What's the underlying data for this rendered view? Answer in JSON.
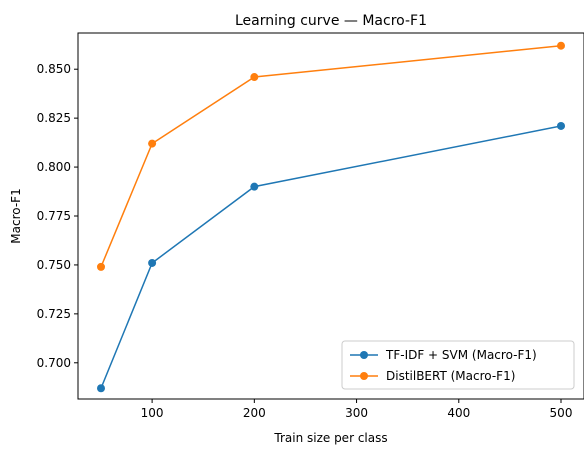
{
  "chart_data": {
    "type": "line",
    "title": "Learning curve — Macro-F1",
    "xlabel": "Train size per class",
    "ylabel": "Macro-F1",
    "xlim": [
      27.5,
      522.5
    ],
    "ylim": [
      0.6815,
      0.8685
    ],
    "x_ticks": [
      100,
      200,
      300,
      400,
      500
    ],
    "y_ticks": [
      0.7,
      0.725,
      0.75,
      0.775,
      0.8,
      0.825,
      0.85
    ],
    "x_tick_labels": [
      "100",
      "200",
      "300",
      "400",
      "500"
    ],
    "y_tick_labels": [
      "0.700",
      "0.725",
      "0.750",
      "0.775",
      "0.800",
      "0.825",
      "0.850"
    ],
    "grid": false,
    "legend_position": "lower-right",
    "series": [
      {
        "name": "TF-IDF + SVM (Macro-F1)",
        "color": "#1f77b4",
        "x": [
          50,
          100,
          200,
          500
        ],
        "y": [
          0.687,
          0.751,
          0.79,
          0.821
        ]
      },
      {
        "name": "DistilBERT (Macro-F1)",
        "color": "#ff7f0e",
        "x": [
          50,
          100,
          200,
          500
        ],
        "y": [
          0.749,
          0.812,
          0.846,
          0.862
        ]
      }
    ]
  }
}
